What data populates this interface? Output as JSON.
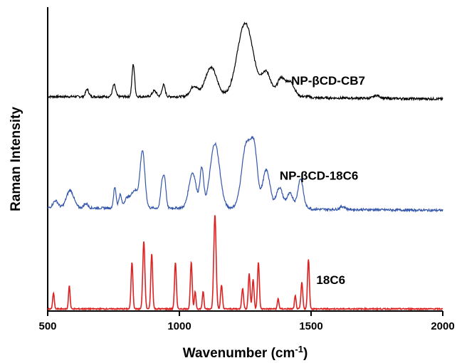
{
  "chart_data": {
    "type": "line",
    "xlabel": "Wavenumber (cm",
    "xlabel_sup": "-1",
    "xlabel_tail": ")",
    "ylabel": "Raman Intensity",
    "xlim": [
      500,
      2000
    ],
    "xticks": [
      {
        "value": 500,
        "label": "500"
      },
      {
        "value": 1000,
        "label": "1000"
      },
      {
        "value": 1500,
        "label": "1500"
      },
      {
        "value": 2000,
        "label": "2000"
      }
    ],
    "yticks_shown": false,
    "grid": false,
    "series": [
      {
        "name": "NP-βCD-CB7",
        "color": "#000000",
        "baseline": 0.72,
        "noise": 0.004,
        "peaks": [
          {
            "x": 650,
            "h": 0.025,
            "w": 6
          },
          {
            "x": 752,
            "h": 0.04,
            "w": 6
          },
          {
            "x": 825,
            "h": 0.11,
            "w": 5
          },
          {
            "x": 905,
            "h": 0.02,
            "w": 8
          },
          {
            "x": 940,
            "h": 0.04,
            "w": 6
          },
          {
            "x": 1055,
            "h": 0.035,
            "w": 14
          },
          {
            "x": 1120,
            "h": 0.1,
            "w": 22
          },
          {
            "x": 1250,
            "h": 0.25,
            "w": 30
          },
          {
            "x": 1330,
            "h": 0.08,
            "w": 18
          },
          {
            "x": 1385,
            "h": 0.06,
            "w": 14
          },
          {
            "x": 1420,
            "h": 0.05,
            "w": 16
          },
          {
            "x": 1750,
            "h": 0.01,
            "w": 12
          }
        ]
      },
      {
        "name": "NP-βCD-18C6",
        "color": "#3355aa",
        "baseline": 0.34,
        "noise": 0.004,
        "peaks": [
          {
            "x": 530,
            "h": 0.025,
            "w": 10
          },
          {
            "x": 585,
            "h": 0.06,
            "w": 14
          },
          {
            "x": 645,
            "h": 0.015,
            "w": 8
          },
          {
            "x": 755,
            "h": 0.07,
            "w": 5
          },
          {
            "x": 775,
            "h": 0.045,
            "w": 5
          },
          {
            "x": 800,
            "h": 0.03,
            "w": 10
          },
          {
            "x": 860,
            "h": 0.19,
            "w": 9
          },
          {
            "x": 830,
            "h": 0.06,
            "w": 14
          },
          {
            "x": 935,
            "h": 0.09,
            "w": 6
          },
          {
            "x": 945,
            "h": 0.08,
            "w": 5
          },
          {
            "x": 1050,
            "h": 0.12,
            "w": 14
          },
          {
            "x": 1085,
            "h": 0.13,
            "w": 7
          },
          {
            "x": 1135,
            "h": 0.22,
            "w": 18
          },
          {
            "x": 1255,
            "h": 0.22,
            "w": 18
          },
          {
            "x": 1285,
            "h": 0.17,
            "w": 12
          },
          {
            "x": 1330,
            "h": 0.13,
            "w": 14
          },
          {
            "x": 1380,
            "h": 0.07,
            "w": 12
          },
          {
            "x": 1420,
            "h": 0.05,
            "w": 12
          },
          {
            "x": 1460,
            "h": 0.1,
            "w": 10
          },
          {
            "x": 1620,
            "h": 0.01,
            "w": 10
          }
        ]
      },
      {
        "name": "18C6",
        "color": "#dd2222",
        "baseline": 0.0,
        "noise": 0.002,
        "peaks": [
          {
            "x": 522,
            "h": 0.055,
            "w": 3
          },
          {
            "x": 582,
            "h": 0.08,
            "w": 3
          },
          {
            "x": 820,
            "h": 0.16,
            "w": 3.5
          },
          {
            "x": 865,
            "h": 0.23,
            "w": 4
          },
          {
            "x": 895,
            "h": 0.19,
            "w": 3.5
          },
          {
            "x": 985,
            "h": 0.16,
            "w": 3.5
          },
          {
            "x": 1045,
            "h": 0.16,
            "w": 3.5
          },
          {
            "x": 1060,
            "h": 0.06,
            "w": 3
          },
          {
            "x": 1090,
            "h": 0.06,
            "w": 3
          },
          {
            "x": 1135,
            "h": 0.32,
            "w": 4.5
          },
          {
            "x": 1160,
            "h": 0.08,
            "w": 3.5
          },
          {
            "x": 1240,
            "h": 0.07,
            "w": 3.5
          },
          {
            "x": 1265,
            "h": 0.12,
            "w": 3.5
          },
          {
            "x": 1280,
            "h": 0.1,
            "w": 3.5
          },
          {
            "x": 1300,
            "h": 0.16,
            "w": 3.5
          },
          {
            "x": 1375,
            "h": 0.035,
            "w": 3
          },
          {
            "x": 1440,
            "h": 0.045,
            "w": 3
          },
          {
            "x": 1465,
            "h": 0.09,
            "w": 3.5
          },
          {
            "x": 1490,
            "h": 0.17,
            "w": 3.5
          }
        ]
      }
    ],
    "series_labels": [
      {
        "text": "NP-βCD-CB7",
        "anchor_x": 1565,
        "anchor_y": 0.765
      },
      {
        "text": "NP-βCD-18C6",
        "anchor_x": 1530,
        "anchor_y": 0.44
      },
      {
        "text": "18C6",
        "anchor_x": 1575,
        "anchor_y": 0.085
      }
    ]
  }
}
